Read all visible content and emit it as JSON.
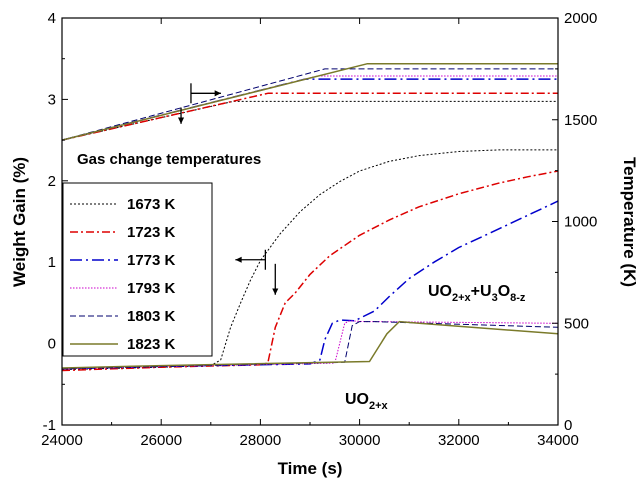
{
  "chart_data": {
    "type": "line",
    "xlabel": "Time (s)",
    "ylabel": "Weight Gain (%)",
    "y2label": "Temperature (K)",
    "xlim": [
      24000,
      34000
    ],
    "ylim": [
      -1,
      4
    ],
    "y2lim": [
      0,
      2000
    ],
    "xticks": [
      24000,
      26000,
      28000,
      30000,
      32000,
      34000
    ],
    "yticks": [
      -1,
      0,
      1,
      2,
      3,
      4
    ],
    "y2ticks": [
      0,
      500,
      1000,
      1500,
      2000
    ],
    "grid": false,
    "legend": {
      "title": "Gas change temperatures",
      "placement": "left"
    },
    "annotations": {
      "mixed_phase": {
        "a": "UO",
        "a_sub": "2+x",
        "b": "+U",
        "b_sub": "3",
        "c": "O",
        "c_sub": "8-z"
      },
      "single_phase": {
        "a": "UO",
        "a_sub": "2+x"
      }
    },
    "series": [
      {
        "name": "1673 K",
        "color": "#000000",
        "dash": "2,2",
        "width": 1,
        "weight": [
          [
            24000,
            -0.32
          ],
          [
            26000,
            -0.29
          ],
          [
            27000,
            -0.27
          ],
          [
            27200,
            -0.2
          ],
          [
            27400,
            0.2
          ],
          [
            27600,
            0.5
          ],
          [
            27800,
            0.78
          ],
          [
            28000,
            1.02
          ],
          [
            28400,
            1.35
          ],
          [
            28800,
            1.62
          ],
          [
            29200,
            1.83
          ],
          [
            29600,
            1.99
          ],
          [
            30000,
            2.12
          ],
          [
            30600,
            2.24
          ],
          [
            31200,
            2.31
          ],
          [
            32000,
            2.36
          ],
          [
            32800,
            2.38
          ],
          [
            33400,
            2.38
          ],
          [
            34000,
            2.38
          ]
        ],
        "temperature": [
          [
            24000,
            1400
          ],
          [
            27450,
            1590
          ],
          [
            34000,
            1590
          ]
        ]
      },
      {
        "name": "1723 K",
        "color": "#dd0000",
        "dash": "8,3,2,3",
        "width": 1.5,
        "weight": [
          [
            24000,
            -0.33
          ],
          [
            26000,
            -0.29
          ],
          [
            28000,
            -0.26
          ],
          [
            28150,
            -0.24
          ],
          [
            28300,
            0.2
          ],
          [
            28500,
            0.5
          ],
          [
            28700,
            0.62
          ],
          [
            29000,
            0.85
          ],
          [
            29400,
            1.08
          ],
          [
            30000,
            1.33
          ],
          [
            30600,
            1.52
          ],
          [
            31200,
            1.68
          ],
          [
            32000,
            1.84
          ],
          [
            32800,
            1.97
          ],
          [
            33400,
            2.05
          ],
          [
            34000,
            2.12
          ]
        ],
        "temperature": [
          [
            24000,
            1400
          ],
          [
            28150,
            1630
          ],
          [
            34000,
            1630
          ]
        ]
      },
      {
        "name": "1773 K",
        "color": "#0000cc",
        "dash": "12,4,2,4",
        "width": 1.5,
        "weight": [
          [
            24000,
            -0.31
          ],
          [
            26000,
            -0.28
          ],
          [
            29000,
            -0.25
          ],
          [
            29200,
            -0.2
          ],
          [
            29300,
            0.05
          ],
          [
            29450,
            0.25
          ],
          [
            29600,
            0.29
          ],
          [
            29900,
            0.28
          ],
          [
            30300,
            0.4
          ],
          [
            30600,
            0.58
          ],
          [
            31000,
            0.8
          ],
          [
            31500,
            1.0
          ],
          [
            32000,
            1.18
          ],
          [
            32600,
            1.35
          ],
          [
            33300,
            1.55
          ],
          [
            34000,
            1.75
          ]
        ],
        "temperature": [
          [
            24000,
            1400
          ],
          [
            28900,
            1700
          ],
          [
            34000,
            1700
          ]
        ]
      },
      {
        "name": "1793 K",
        "color": "#cc00cc",
        "dash": "1.5,1.5",
        "width": 1,
        "weight": [
          [
            24000,
            -0.31
          ],
          [
            26000,
            -0.28
          ],
          [
            29500,
            -0.24
          ],
          [
            29700,
            0.25
          ],
          [
            29800,
            0.28
          ],
          [
            30100,
            0.27
          ],
          [
            30300,
            0.27
          ],
          [
            34000,
            0.25
          ]
        ],
        "temperature": [
          [
            24000,
            1400
          ],
          [
            29150,
            1715
          ],
          [
            34000,
            1715
          ]
        ]
      },
      {
        "name": "1803 K",
        "color": "#00006e",
        "dash": "6,3",
        "width": 1,
        "weight": [
          [
            24000,
            -0.31
          ],
          [
            26000,
            -0.28
          ],
          [
            29700,
            -0.23
          ],
          [
            29850,
            0.22
          ],
          [
            30000,
            0.27
          ],
          [
            30300,
            0.27
          ],
          [
            34000,
            0.2
          ]
        ],
        "temperature": [
          [
            24000,
            1400
          ],
          [
            29300,
            1750
          ],
          [
            34000,
            1750
          ]
        ]
      },
      {
        "name": "1823 K",
        "color": "#7a7a2a",
        "dash": "",
        "width": 1.5,
        "weight": [
          [
            24000,
            -0.3
          ],
          [
            26000,
            -0.27
          ],
          [
            30200,
            -0.22
          ],
          [
            30550,
            0.12
          ],
          [
            30800,
            0.27
          ],
          [
            31200,
            0.25
          ],
          [
            34000,
            0.12
          ]
        ],
        "temperature": [
          [
            24000,
            1400
          ],
          [
            30150,
            1775
          ],
          [
            34000,
            1775
          ]
        ]
      }
    ]
  }
}
